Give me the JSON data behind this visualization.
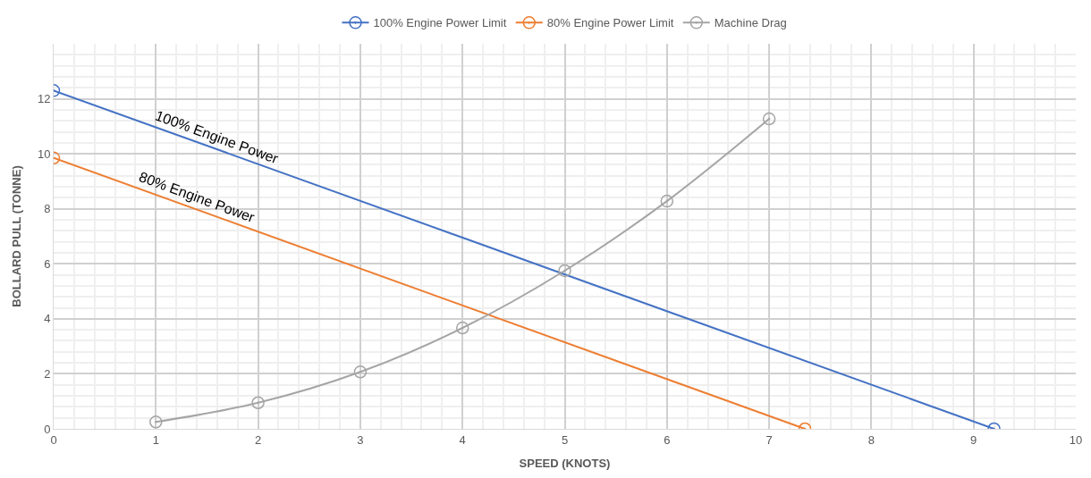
{
  "chart_data": {
    "type": "line",
    "xlabel": "SPEED (KNOTS)",
    "ylabel": "BOLLARD PULL (TONNE)",
    "xlim": [
      0,
      10
    ],
    "xticks": [
      0,
      1,
      2,
      3,
      4,
      5,
      6,
      7,
      8,
      9,
      10
    ],
    "ylim": [
      0,
      14
    ],
    "yticks": [
      0,
      2,
      4,
      6,
      8,
      10,
      12
    ],
    "grid": true,
    "legend": "top",
    "marker": "circle",
    "line_style": "solid",
    "series": [
      {
        "name": "100% Engine Power Limit",
        "color": "#4472c4",
        "x": [
          0,
          9.2
        ],
        "values": [
          12.3,
          0
        ]
      },
      {
        "name": "80% Engine Power Limit",
        "color": "#ed7d31",
        "x": [
          0,
          7.35
        ],
        "values": [
          9.85,
          0
        ]
      },
      {
        "name": "Machine Drag",
        "color": "#a5a5a5",
        "x": [
          1,
          2,
          3,
          4,
          5,
          6,
          7
        ],
        "values": [
          0.25,
          0.95,
          2.07,
          3.67,
          5.75,
          8.28,
          11.27
        ]
      }
    ],
    "annotations": [
      {
        "text": "100% Engine Power",
        "x": 1.6,
        "y": 10.16
      },
      {
        "text": "80% Engine Power",
        "x": 1.4,
        "y": 7.97
      }
    ]
  }
}
